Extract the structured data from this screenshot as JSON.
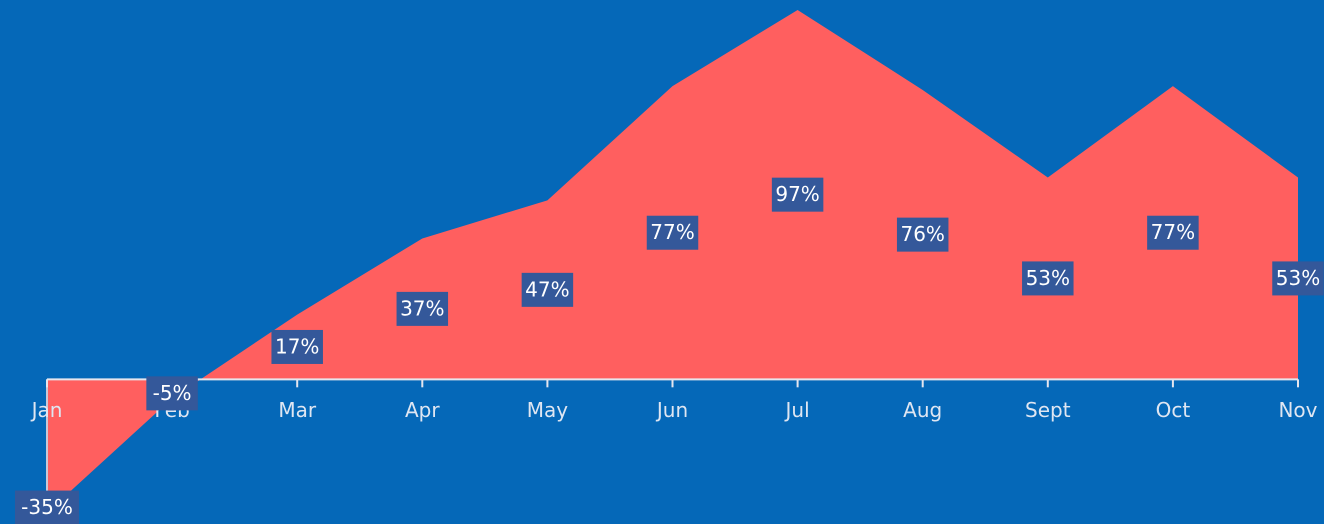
{
  "chart_data": {
    "type": "area",
    "categories": [
      "Jan",
      "Feb",
      "Mar",
      "Apr",
      "May",
      "Jun",
      "Jul",
      "Aug",
      "Sept",
      "Oct",
      "Nov"
    ],
    "values": [
      -35,
      -5,
      17,
      37,
      47,
      77,
      97,
      76,
      53,
      77,
      53
    ],
    "value_labels": [
      "-35%",
      "-5%",
      "17%",
      "37%",
      "47%",
      "77%",
      "97%",
      "76%",
      "53%",
      "77%",
      "53%"
    ],
    "color": "#ff5f5f",
    "ylim": [
      -38,
      97
    ]
  }
}
